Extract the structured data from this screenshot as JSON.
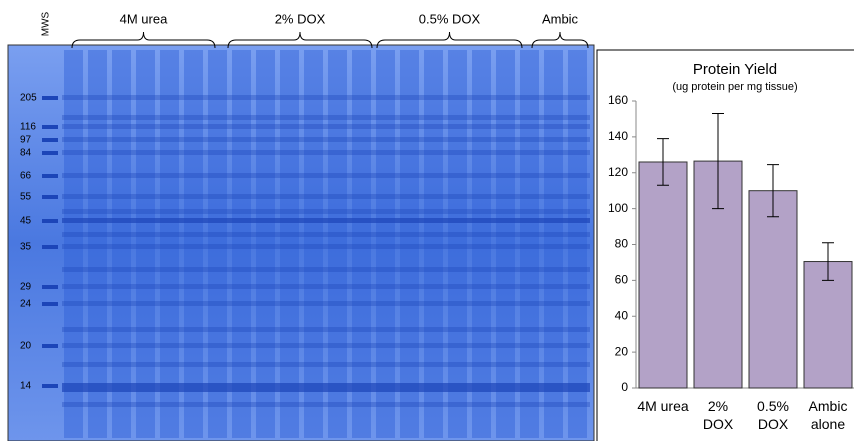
{
  "gel": {
    "lane_label": "MWS",
    "groups": [
      "4M urea",
      "2% DOX",
      "0.5% DOX",
      "Ambic"
    ],
    "markers": [
      205,
      116,
      97,
      84,
      66,
      55,
      45,
      35,
      29,
      24,
      20,
      14
    ]
  },
  "chart_data": {
    "type": "bar",
    "title": "Protein Yield",
    "subtitle": "(ug protein per mg tissue)",
    "categories": [
      "4M urea",
      "2% DOX",
      "0.5% DOX",
      "Ambic alone"
    ],
    "values": [
      126,
      126.5,
      110,
      70.5
    ],
    "errors": [
      13,
      26.5,
      14.5,
      10.5
    ],
    "color": "#b3a2c7",
    "ylim": [
      0,
      160
    ],
    "yticks": [
      0,
      20,
      40,
      60,
      80,
      100,
      120,
      140,
      160
    ],
    "grid": false
  }
}
